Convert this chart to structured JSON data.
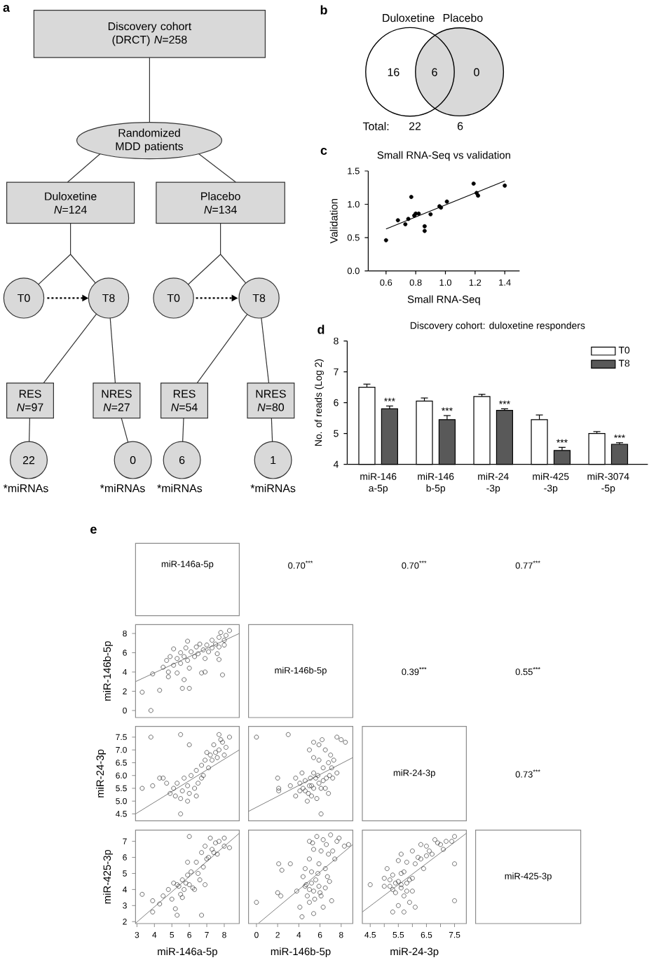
{
  "chart_data": [
    {
      "type": "other",
      "annotations": [
        "a",
        "Discovery cohort (DRCT) *N*=258",
        "Randomized MDD patients",
        "Duloxetine *N*=124",
        "Placebo *N*=134",
        "T0",
        "T8",
        "T0",
        "T8",
        "RES *N*=97",
        "NRES *N*=27",
        "RES *N*=54",
        "NRES *N*=80",
        "22",
        "0",
        "6",
        "1",
        "*miRNAs",
        "*miRNAs",
        "*miRNAs",
        "*miRNAs"
      ]
    },
    {
      "type": "other",
      "categories": [
        "Duloxetine",
        "Placebo"
      ],
      "values": [
        22,
        6
      ],
      "colors": [
        "#ffffff",
        "#d9d9d9"
      ],
      "data_labels": true,
      "annotations": [
        "b",
        "16",
        "6",
        "0",
        "Total:"
      ]
    },
    {
      "type": "scatter",
      "title": "Small RNA-Seq vs validation",
      "xlabel": "Small RNA-Seq",
      "ylabel": "Validation",
      "xlim": [
        0.48,
        1.5
      ],
      "xticks": [
        0.6,
        0.8,
        {
          "value": 1,
          "label": "1.0"
        },
        1.2,
        1.4
      ],
      "ylim": [
        0,
        1.5
      ],
      "yticks": [
        {
          "value": 0,
          "label": "0.0"
        },
        0.5,
        {
          "value": 1,
          "label": "1.0"
        },
        1.5
      ],
      "series": [
        {
          "type": "scatter",
          "marker": "circle",
          "color": "#000000",
          "x": [
            0.6,
            0.68,
            0.73,
            0.75,
            0.77,
            0.79,
            0.8,
            0.82,
            0.86,
            0.86,
            0.9,
            0.96,
            0.97,
            1.01,
            1.19,
            1.21,
            1.22,
            1.4
          ],
          "values": [
            0.46,
            0.76,
            0.7,
            0.78,
            1.11,
            0.83,
            0.86,
            0.86,
            0.67,
            0.6,
            0.85,
            0.97,
            0.95,
            1.04,
            1.31,
            1.17,
            1.13,
            1.28
          ]
        },
        {
          "type": "line",
          "color": "#000000",
          "x": [
            0.6,
            1.4
          ],
          "values": [
            0.63,
            1.35
          ]
        }
      ],
      "annotations": [
        "c"
      ]
    },
    {
      "type": "bar",
      "title": "Discovery cohort: duloxetine responders",
      "ylabel": "No. of reads (Log 2)",
      "categories": [
        "miR-146 a-5p",
        "miR-146 b-5p",
        "miR-24 -3p",
        "miR-425 -3p",
        "miR-3074 -5p"
      ],
      "ylim": [
        4,
        8
      ],
      "yticks": [
        4,
        5,
        6,
        7,
        8
      ],
      "legend": "top right",
      "series": [
        {
          "name": "T0",
          "color": "#ffffff",
          "values": [
            6.5,
            6.05,
            6.2,
            5.45,
            5.0
          ],
          "errors": [
            [
              6.5,
              6.6
            ],
            [
              6.05,
              6.15
            ],
            [
              6.2,
              6.27
            ],
            [
              5.45,
              5.6
            ],
            [
              5.0,
              5.06
            ]
          ]
        },
        {
          "name": "T8",
          "color": "#595959",
          "values": [
            5.8,
            5.45,
            5.75,
            4.45,
            4.65
          ],
          "errors": [
            [
              5.8,
              5.89
            ],
            [
              5.45,
              5.58
            ],
            [
              5.75,
              5.8
            ],
            [
              4.45,
              4.55
            ],
            [
              4.65,
              4.7
            ]
          ],
          "value_labels": [
            "***",
            "***",
            "***",
            "***",
            "***"
          ]
        }
      ],
      "annotations": [
        "d"
      ]
    },
    {
      "type": "other",
      "title": "miR-146a-5p",
      "annotations": [
        "e",
        "0.70$^{***}$",
        "0.70$^{***}$",
        "0.77$^{***}$"
      ]
    },
    {
      "type": "scatter",
      "ylabel": "miR-146b-5p",
      "tick_labels": "y",
      "xlim": [
        2.92,
        8.86
      ],
      "ylim": [
        -0.73,
        8.92
      ],
      "yticks": [
        0,
        2,
        4,
        6,
        8
      ],
      "series": [
        {
          "type": "scatter",
          "marker": "circle",
          "color": "#333333",
          "x": [
            3.3,
            3.8,
            4.3,
            3.9,
            5.6,
            6.0,
            5.7,
            7.9,
            6.7,
            6.9,
            4.5,
            4.7,
            4.8,
            4.9,
            5.1,
            5.1,
            5.3,
            5.3,
            5.5,
            5.5,
            5.7,
            5.8,
            5.9,
            5.9,
            6.0,
            6.1,
            6.3,
            6.4,
            6.5,
            6.6,
            6.8,
            6.9,
            7.0,
            7.1,
            7.3,
            7.3,
            7.5,
            7.6,
            7.7,
            7.7,
            7.8,
            8.0,
            8.0,
            8.1,
            8.3,
            7.7,
            4.8
          ],
          "values": [
            1.9,
            0.0,
            2.1,
            3.8,
            2.3,
            2.3,
            3.2,
            3.7,
            3.9,
            4.0,
            4.5,
            5.2,
            4.0,
            5.6,
            4.7,
            6.4,
            5.4,
            3.9,
            6.0,
            4.9,
            5.6,
            6.5,
            5.2,
            7.2,
            4.4,
            6.1,
            5.6,
            6.6,
            5.9,
            6.9,
            6.3,
            5.4,
            6.8,
            6.1,
            7.3,
            6.5,
            6.9,
            5.9,
            7.6,
            6.6,
            8.1,
            7.3,
            6.8,
            7.8,
            8.3,
            5.3,
            3.5
          ]
        },
        {
          "type": "line",
          "color": "#808080",
          "x": [
            2.92,
            8.86
          ],
          "values": [
            3.0,
            8.0
          ]
        }
      ]
    },
    {
      "type": "other",
      "title": "miR-146b-5p",
      "annotations": [
        "0.39$^{***}$",
        "0.55$^{***}$"
      ]
    },
    {
      "type": "scatter",
      "ylabel": "miR-24-3p",
      "tick_labels": "y",
      "xlim": [
        2.92,
        8.86
      ],
      "ylim": [
        4.23,
        7.92
      ],
      "yticks": [
        4.5,
        {
          "value": 5,
          "label": "5.0"
        },
        5.5,
        {
          "value": 6,
          "label": "6.0"
        },
        6.5,
        {
          "value": 7,
          "label": "7.0"
        },
        7.5
      ],
      "series": [
        {
          "type": "scatter",
          "marker": "circle",
          "color": "#333333",
          "x": [
            3.8,
            5.5,
            6.0,
            7.7,
            7.8,
            8.3,
            3.3,
            3.9,
            4.3,
            4.5,
            4.7,
            5.5,
            5.1,
            5.3,
            5.6,
            5.7,
            5.9,
            6.0,
            6.1,
            6.3,
            6.4,
            6.5,
            6.7,
            6.8,
            6.9,
            7.1,
            7.2,
            7.3,
            7.5,
            7.6,
            7.7,
            8.0,
            8.1,
            5.2,
            4.9,
            5.5,
            6.4,
            5.9,
            6.7,
            7.0,
            7.4,
            7.9
          ],
          "values": [
            7.5,
            7.6,
            7.2,
            7.6,
            7.4,
            7.5,
            5.5,
            5.6,
            5.9,
            5.9,
            5.7,
            4.5,
            5.5,
            5.7,
            5.4,
            5.9,
            5.6,
            5.3,
            6.0,
            5.5,
            6.2,
            5.7,
            6.4,
            6.0,
            6.6,
            6.3,
            6.8,
            6.6,
            6.9,
            6.7,
            7.0,
            6.8,
            7.1,
            5.2,
            5.3,
            5.1,
            5.2,
            5.0,
            5.9,
            6.9,
            7.2,
            7.3
          ]
        },
        {
          "type": "line",
          "color": "#808080",
          "x": [
            2.92,
            8.86
          ],
          "values": [
            4.5,
            7.0
          ]
        }
      ]
    },
    {
      "type": "scatter",
      "tick_labels": false,
      "xlim": [
        -0.75,
        9.1
      ],
      "ylim": [
        4.23,
        7.92
      ],
      "series": [
        {
          "type": "scatter",
          "marker": "circle",
          "color": "#333333",
          "x": [
            0.0,
            3.0,
            5.4,
            5.9,
            6.2,
            7.6,
            8.0,
            8.4,
            6.5,
            7.0,
            7.3,
            6.8,
            6.3,
            7.1,
            5.4,
            5.0,
            5.9,
            3.7,
            4.1,
            4.6,
            5.0,
            5.4,
            5.9,
            6.1,
            5.2,
            4.6,
            6.5,
            6.8,
            5.7,
            4.1,
            3.2,
            2.0,
            2.1,
            2.1,
            6.1,
            4.8,
            7.2,
            7.6,
            5.4,
            4.3,
            3.7,
            5.2,
            5.6,
            4.9,
            6.3,
            5.8,
            6.9,
            4.4,
            5.1,
            6.6
          ],
          "values": [
            7.5,
            7.6,
            7.3,
            7.2,
            7.4,
            7.5,
            7.4,
            7.3,
            7.0,
            6.8,
            6.6,
            6.5,
            6.3,
            6.3,
            6.7,
            7.0,
            6.6,
            5.9,
            5.7,
            5.8,
            5.6,
            5.5,
            5.7,
            5.5,
            5.2,
            5.4,
            5.5,
            5.3,
            5.1,
            5.4,
            5.6,
            5.9,
            5.5,
            5.4,
            4.5,
            5.0,
            5.9,
            6.1,
            6.1,
            6.1,
            5.2,
            5.6,
            5.9,
            5.3,
            5.8,
            6.0,
            6.0,
            5.5,
            5.9,
            5.9
          ]
        },
        {
          "type": "line",
          "color": "#808080",
          "x": [
            -0.75,
            9.1
          ],
          "values": [
            4.6,
            6.7
          ]
        }
      ]
    },
    {
      "type": "other",
      "title": "miR-24-3p",
      "annotations": [
        "0.73$^{***}$"
      ]
    },
    {
      "type": "scatter",
      "xlabel": "miR-146a-5p",
      "ylabel": "miR-425-3p",
      "xlim": [
        2.92,
        8.86
      ],
      "xticks": [
        3,
        4,
        5,
        6,
        7,
        8
      ],
      "ylim": [
        1.88,
        7.7
      ],
      "yticks": [
        2,
        3,
        4,
        5,
        6,
        7
      ],
      "series": [
        {
          "type": "scatter",
          "marker": "circle",
          "color": "#333333",
          "x": [
            3.3,
            3.9,
            3.9,
            4.3,
            4.5,
            4.8,
            5.0,
            5.2,
            5.3,
            5.3,
            5.5,
            5.6,
            5.7,
            5.9,
            5.9,
            6.0,
            6.0,
            6.1,
            6.3,
            6.4,
            6.5,
            6.7,
            6.7,
            6.8,
            6.9,
            7.1,
            7.2,
            7.3,
            7.5,
            7.6,
            7.7,
            8.0,
            8.3,
            8.0,
            5.1,
            5.6,
            6.9,
            5.4,
            5.8,
            6.2,
            6.6,
            7.0,
            7.4
          ],
          "values": [
            3.7,
            3.3,
            2.6,
            3.1,
            3.6,
            4.0,
            3.4,
            2.8,
            2.4,
            4.3,
            3.7,
            4.6,
            4.0,
            4.9,
            5.7,
            4.3,
            7.3,
            5.1,
            4.0,
            5.7,
            5.0,
            6.3,
            2.4,
            5.4,
            6.7,
            6.0,
            7.2,
            6.5,
            6.9,
            6.2,
            7.0,
            7.2,
            6.6,
            6.7,
            4.4,
            3.5,
            4.3,
            4.2,
            4.4,
            4.1,
            4.6,
            5.9,
            6.3
          ]
        },
        {
          "type": "line",
          "color": "#808080",
          "x": [
            2.92,
            8.86
          ],
          "values": [
            1.9,
            7.5
          ]
        }
      ]
    },
    {
      "type": "scatter",
      "xlabel": "miR-146b-5p",
      "tick_labels": "x",
      "xlim": [
        -0.75,
        9.1
      ],
      "xticks": [
        0,
        2,
        4,
        6,
        8
      ],
      "ylim": [
        1.88,
        7.7
      ],
      "series": [
        {
          "type": "scatter",
          "marker": "circle",
          "color": "#333333",
          "x": [
            5.0,
            5.7,
            6.3,
            7.0,
            7.6,
            8.3,
            8.7,
            5.4,
            6.1,
            6.8,
            7.4,
            5.0,
            5.9,
            6.5,
            4.6,
            5.2,
            2.1,
            3.2,
            2.4,
            4.6,
            5.2,
            5.9,
            6.5,
            5.4,
            4.8,
            6.1,
            5.0,
            4.1,
            4.3,
            5.4,
            6.3,
            6.9,
            7.1,
            3.8,
            0.0,
            2.0,
            2.3,
            5.6,
            5.0,
            6.0,
            4.7,
            5.8,
            6.6,
            7.2,
            5.5,
            6.7,
            4.4,
            7.8,
            5.3
          ],
          "values": [
            7.0,
            7.3,
            7.1,
            7.4,
            7.0,
            6.7,
            6.8,
            6.5,
            6.4,
            6.2,
            5.9,
            5.9,
            5.6,
            5.3,
            5.3,
            5.1,
            5.6,
            5.6,
            5.2,
            4.2,
            4.4,
            4.2,
            4.1,
            3.9,
            3.6,
            3.6,
            3.2,
            2.9,
            2.3,
            2.5,
            2.9,
            4.5,
            3.3,
            3.9,
            3.2,
            3.8,
            3.6,
            4.6,
            4.0,
            3.8,
            4.3,
            5.0,
            6.8,
            6.4,
            3.4,
            4.8,
            4.8,
            7.2,
            6.9
          ]
        },
        {
          "type": "line",
          "color": "#808080",
          "x": [
            0.2,
            9.1
          ],
          "values": [
            1.9,
            6.8
          ]
        }
      ]
    },
    {
      "type": "scatter",
      "xlabel": "miR-24-3p",
      "tick_labels": "x",
      "xlim": [
        4.22,
        7.92
      ],
      "xticks": [
        4.5,
        {
          "value": 5,
          "label": null
        },
        5.5,
        {
          "value": 6,
          "label": null
        },
        6.5,
        {
          "value": 7,
          "label": null
        },
        7.5
      ],
      "ylim": [
        1.88,
        7.7
      ],
      "series": [
        {
          "type": "scatter",
          "marker": "circle",
          "color": "#333333",
          "x": [
            4.5,
            5.3,
            5.5,
            5.6,
            5.8,
            5.7,
            6.0,
            6.3,
            6.5,
            6.8,
            7.0,
            7.1,
            7.4,
            7.5,
            6.2,
            6.5,
            6.7,
            5.2,
            5.5,
            5.6,
            5.8,
            5.4,
            5.7,
            6.0,
            6.0,
            5.9,
            5.5,
            5.3,
            5.7,
            6.1,
            5.0,
            5.0,
            7.5,
            7.5,
            6.4,
            5.1,
            5.4,
            5.6,
            5.9,
            5.3,
            6.1,
            6.6,
            6.9,
            5.2,
            5.8,
            7.2,
            6.3,
            5.6
          ],
          "values": [
            4.3,
            4.9,
            5.8,
            6.2,
            5.7,
            5.1,
            6.4,
            6.8,
            6.7,
            7.1,
            6.8,
            6.5,
            7.0,
            7.3,
            6.0,
            6.1,
            6.2,
            4.2,
            4.5,
            4.1,
            4.4,
            3.8,
            3.6,
            3.9,
            4.7,
            3.2,
            3.0,
            2.6,
            2.6,
            2.9,
            4.7,
            4.2,
            3.3,
            5.6,
            5.3,
            5.3,
            4.4,
            4.3,
            4.6,
            4.0,
            5.6,
            6.4,
            6.9,
            4.6,
            3.9,
            7.0,
            5.9,
            5.0
          ]
        },
        {
          "type": "line",
          "color": "#808080",
          "x": [
            4.22,
            7.92
          ],
          "values": [
            2.6,
            7.5
          ]
        }
      ]
    },
    {
      "type": "other",
      "title": "miR-425-3p"
    }
  ]
}
